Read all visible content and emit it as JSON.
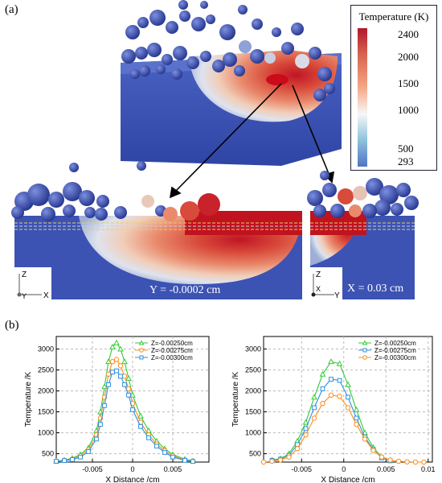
{
  "panel_labels": {
    "a": "(a)",
    "b": "(b)"
  },
  "legend": {
    "title": "Temperature (K)",
    "ticks": [
      "2400",
      "2000",
      "1500",
      "1000",
      "500",
      "293"
    ],
    "colors": {
      "max": "#b2182b",
      "mid": "#f7f7f7",
      "min": "#3b56b0"
    }
  },
  "sections": {
    "left_label": "Y = -0.0002 cm",
    "right_label": "X = 0.03 cm",
    "left_axes": {
      "vertical": "Z",
      "horizontal": "X",
      "origin": "Y"
    },
    "right_axes": {
      "vertical": "Z",
      "horizontal": "Y",
      "origin": "X"
    }
  },
  "chart_data": [
    {
      "type": "line",
      "xlabel": "X Distance /cm",
      "ylabel": "Temperature /K",
      "xlim": [
        -0.0095,
        0.0095
      ],
      "ylim": [
        300,
        3300
      ],
      "xticks": [
        -0.005,
        0,
        0.005
      ],
      "xtick_labels": [
        "-0.005",
        "0",
        "0.005"
      ],
      "yticks": [
        500,
        1000,
        1500,
        2000,
        2500,
        3000
      ],
      "grid": true,
      "legend_position": "top-right",
      "series": [
        {
          "name": "Z=-0.00250cm",
          "color": "#33cc33",
          "marker": "triangle",
          "x": [
            -0.0095,
            -0.0085,
            -0.0075,
            -0.0065,
            -0.0055,
            -0.0045,
            -0.004,
            -0.0035,
            -0.003,
            -0.0025,
            -0.002,
            -0.0015,
            -0.001,
            -0.0005,
            0,
            0.001,
            0.002,
            0.003,
            0.004,
            0.005,
            0.0065,
            0.0075
          ],
          "y": [
            320,
            350,
            390,
            480,
            640,
            1050,
            1500,
            2100,
            2700,
            3050,
            3150,
            3000,
            2700,
            2300,
            1900,
            1400,
            1050,
            800,
            620,
            480,
            370,
            330
          ]
        },
        {
          "name": "Z=-0.00275cm",
          "color": "#ff8c1a",
          "marker": "circle",
          "x": [
            -0.0095,
            -0.0085,
            -0.0075,
            -0.0065,
            -0.0055,
            -0.0045,
            -0.004,
            -0.0035,
            -0.003,
            -0.0025,
            -0.002,
            -0.0015,
            -0.001,
            -0.0005,
            0,
            0.001,
            0.002,
            0.003,
            0.004,
            0.005,
            0.0065,
            0.0075
          ],
          "y": [
            320,
            340,
            370,
            450,
            590,
            950,
            1350,
            1850,
            2400,
            2700,
            2750,
            2600,
            2350,
            2050,
            1700,
            1250,
            950,
            730,
            570,
            450,
            350,
            320
          ]
        },
        {
          "name": "Z=-0.00300cm",
          "color": "#2f8fe0",
          "marker": "square",
          "x": [
            -0.0095,
            -0.0085,
            -0.0075,
            -0.0065,
            -0.0055,
            -0.0045,
            -0.004,
            -0.0035,
            -0.003,
            -0.0025,
            -0.002,
            -0.0015,
            -0.001,
            -0.0005,
            0,
            0.001,
            0.002,
            0.003,
            0.004,
            0.005,
            0.0065,
            0.0075
          ],
          "y": [
            320,
            335,
            360,
            420,
            550,
            850,
            1200,
            1650,
            2150,
            2450,
            2480,
            2350,
            2150,
            1900,
            1550,
            1150,
            880,
            680,
            530,
            420,
            340,
            315
          ]
        }
      ]
    },
    {
      "type": "line",
      "xlabel": "X Distance /cm",
      "ylabel": "Temperature /K",
      "xlim": [
        -0.0095,
        0.0105
      ],
      "ylim": [
        300,
        3300
      ],
      "xticks": [
        -0.005,
        0,
        0.005,
        0.01
      ],
      "xtick_labels": [
        "-0.005",
        "0",
        "0.005",
        "0.01"
      ],
      "yticks": [
        500,
        1000,
        1500,
        2000,
        2500,
        3000
      ],
      "grid": true,
      "legend_position": "top-right",
      "series": [
        {
          "name": "Z=-0.00250cm",
          "color": "#33cc33",
          "marker": "triangle",
          "x": [
            -0.0085,
            -0.0075,
            -0.0065,
            -0.0055,
            -0.0045,
            -0.0035,
            -0.0025,
            -0.0015,
            -0.0005,
            0.0005,
            0.0015,
            0.0025,
            0.0035,
            0.0045,
            0.0055
          ],
          "y": [
            350,
            380,
            500,
            800,
            1250,
            1850,
            2400,
            2700,
            2650,
            2150,
            1550,
            1000,
            650,
            420,
            340
          ]
        },
        {
          "name": "Z=-0.00275cm",
          "color": "#2f8fe0",
          "marker": "square",
          "x": [
            -0.0085,
            -0.0075,
            -0.0065,
            -0.0055,
            -0.0045,
            -0.0035,
            -0.0025,
            -0.0015,
            -0.0005,
            0.0005,
            0.0015,
            0.0025,
            0.0035,
            0.0045,
            0.0055
          ],
          "y": [
            340,
            370,
            460,
            720,
            1100,
            1600,
            2050,
            2280,
            2250,
            1850,
            1350,
            900,
            600,
            400,
            330
          ]
        },
        {
          "name": "Z=-0.00300cm",
          "color": "#ff8c1a",
          "marker": "circle",
          "x": [
            -0.0095,
            -0.0085,
            -0.0075,
            -0.0065,
            -0.0055,
            -0.0045,
            -0.0035,
            -0.0025,
            -0.0015,
            -0.0005,
            0.0005,
            0.0015,
            0.0025,
            0.0035,
            0.0045,
            0.0055,
            0.0065,
            0.0075,
            0.0085,
            0.0095
          ],
          "y": [
            300,
            320,
            350,
            420,
            620,
            950,
            1350,
            1700,
            1900,
            1870,
            1600,
            1200,
            850,
            580,
            420,
            350,
            320,
            305,
            300,
            300
          ]
        }
      ]
    }
  ]
}
